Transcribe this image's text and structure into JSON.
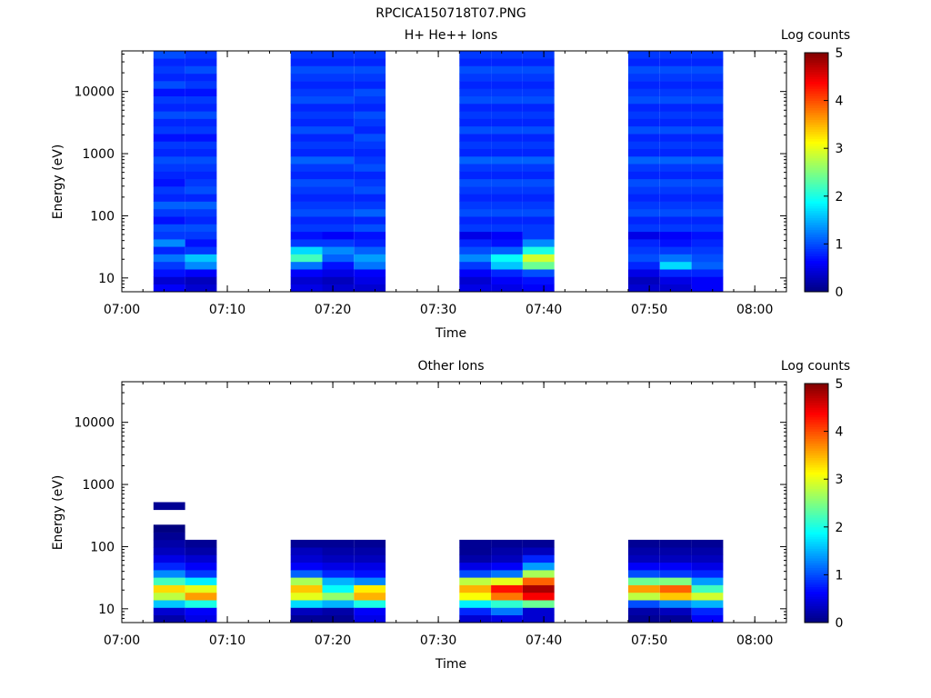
{
  "figure_title": "RPCICA150718T07.PNG",
  "colorbar_ticks": [
    "0",
    "1",
    "2",
    "3",
    "4",
    "5"
  ],
  "chart_data": [
    {
      "type": "heatmap",
      "title": "H+ He++ Ions",
      "xlabel": "Time",
      "ylabel": "Energy (eV)",
      "y_scale": "log",
      "ylim": [
        6,
        45000
      ],
      "xlim": [
        "07:00",
        "08:03"
      ],
      "x_ticks": [
        "07:00",
        "07:10",
        "07:20",
        "07:30",
        "07:40",
        "07:50",
        "08:00"
      ],
      "y_ticks": [
        "10",
        "100",
        "1000",
        "10000"
      ],
      "colorbar_label": "Log counts",
      "colorbar_range": [
        0,
        5
      ],
      "colormap": "jet",
      "columns": [
        {
          "start": "07:03",
          "end": "07:06",
          "values": [
            0.6,
            0.4,
            0.7,
            0.9,
            1.2,
            0.8,
            1.3,
            0.9,
            1.0,
            0.7,
            0.9,
            1.1,
            0.8,
            0.9,
            0.7,
            0.8,
            0.9,
            1.0,
            0.8,
            0.9,
            0.7,
            0.9,
            0.8,
            1.0,
            0.8,
            0.9,
            0.7,
            1.0,
            0.8,
            0.9,
            0.8,
            1.0
          ]
        },
        {
          "start": "07:06",
          "end": "07:09",
          "values": [
            0.4,
            0.3,
            0.6,
            1.3,
            1.6,
            0.9,
            0.7,
            0.9,
            1.0,
            0.8,
            0.9,
            1.1,
            0.8,
            1.0,
            0.9,
            0.8,
            0.9,
            1.0,
            0.8,
            0.9,
            0.7,
            0.9,
            0.8,
            1.0,
            0.8,
            0.9,
            0.7,
            0.9,
            0.8,
            1.0,
            0.8,
            0.9
          ]
        },
        {
          "start": "07:16",
          "end": "07:19",
          "values": [
            0.5,
            0.4,
            0.6,
            1.2,
            2.2,
            1.7,
            0.9,
            0.7,
            0.9,
            0.8,
            1.0,
            0.9,
            0.8,
            0.9,
            1.0,
            0.8,
            0.9,
            1.1,
            0.8,
            0.9,
            0.8,
            1.0,
            0.8,
            0.9,
            0.8,
            1.0,
            0.9,
            0.8,
            0.9,
            1.0,
            0.8,
            0.9
          ]
        },
        {
          "start": "07:19",
          "end": "07:22",
          "values": [
            0.4,
            0.3,
            0.5,
            0.7,
            1.1,
            1.3,
            0.9,
            0.6,
            0.9,
            0.8,
            1.0,
            0.9,
            0.8,
            0.9,
            1.0,
            0.8,
            0.9,
            1.1,
            0.8,
            0.9,
            0.8,
            1.0,
            0.8,
            0.9,
            0.8,
            1.0,
            0.9,
            0.8,
            0.9,
            1.0,
            0.8,
            0.9
          ]
        },
        {
          "start": "07:22",
          "end": "07:25",
          "values": [
            0.4,
            0.5,
            0.6,
            1.2,
            1.4,
            1.1,
            0.8,
            0.7,
            1.0,
            0.8,
            1.1,
            0.9,
            0.8,
            1.0,
            0.9,
            0.8,
            1.0,
            0.9,
            0.8,
            0.9,
            1.0,
            0.8,
            0.9,
            1.0,
            0.8,
            0.9,
            1.0,
            0.8,
            0.9,
            1.0,
            0.8,
            0.9
          ]
        },
        {
          "start": "07:32",
          "end": "07:35",
          "values": [
            0.5,
            0.4,
            0.6,
            0.9,
            1.3,
            1.0,
            0.8,
            0.5,
            0.9,
            0.8,
            1.0,
            0.9,
            0.8,
            0.9,
            1.0,
            0.8,
            0.9,
            1.1,
            0.8,
            0.9,
            0.8,
            1.0,
            0.8,
            0.9,
            0.8,
            1.0,
            0.9,
            0.8,
            0.9,
            1.0,
            0.8,
            0.9
          ]
        },
        {
          "start": "07:35",
          "end": "07:38",
          "values": [
            0.5,
            0.6,
            0.8,
            1.6,
            1.9,
            1.1,
            0.7,
            0.6,
            0.9,
            0.8,
            1.0,
            0.9,
            0.8,
            0.9,
            1.0,
            0.8,
            0.9,
            1.1,
            0.8,
            0.9,
            0.8,
            1.0,
            0.8,
            0.9,
            0.8,
            1.0,
            0.9,
            0.8,
            0.9,
            1.0,
            0.8,
            0.9
          ]
        },
        {
          "start": "07:38",
          "end": "07:41",
          "values": [
            0.6,
            0.7,
            1.0,
            2.4,
            2.9,
            2.0,
            1.3,
            0.9,
            0.9,
            0.8,
            1.0,
            0.9,
            0.8,
            0.9,
            1.0,
            0.8,
            0.9,
            1.1,
            0.8,
            0.9,
            0.8,
            1.0,
            0.8,
            0.9,
            0.8,
            1.0,
            0.9,
            0.8,
            0.9,
            1.0,
            0.8,
            0.9
          ]
        },
        {
          "start": "07:48",
          "end": "07:51",
          "values": [
            0.4,
            0.3,
            0.5,
            0.8,
            1.0,
            0.9,
            0.8,
            0.5,
            0.9,
            0.8,
            1.0,
            0.9,
            0.8,
            0.9,
            1.0,
            0.8,
            0.9,
            1.1,
            0.8,
            0.9,
            0.8,
            1.0,
            0.8,
            0.9,
            0.8,
            1.0,
            0.9,
            0.8,
            0.9,
            1.0,
            0.8,
            0.9
          ]
        },
        {
          "start": "07:51",
          "end": "07:54",
          "values": [
            0.4,
            0.5,
            0.8,
            1.7,
            1.2,
            0.9,
            0.7,
            0.6,
            0.9,
            0.8,
            1.0,
            0.9,
            0.8,
            0.9,
            1.0,
            0.8,
            0.9,
            1.1,
            0.8,
            0.9,
            0.8,
            1.0,
            0.8,
            0.9,
            0.8,
            1.0,
            0.9,
            0.8,
            0.9,
            1.0,
            0.8,
            0.9
          ]
        },
        {
          "start": "07:54",
          "end": "07:57",
          "values": [
            0.6,
            0.6,
            0.8,
            1.1,
            1.0,
            0.9,
            0.8,
            0.7,
            0.9,
            0.8,
            1.0,
            0.9,
            0.8,
            0.9,
            1.0,
            0.8,
            0.9,
            1.1,
            0.8,
            0.9,
            0.8,
            1.0,
            0.8,
            0.9,
            0.8,
            1.0,
            0.9,
            0.8,
            0.9,
            1.0,
            0.8,
            0.9
          ]
        }
      ]
    },
    {
      "type": "heatmap",
      "title": "Other Ions",
      "xlabel": "Time",
      "ylabel": "Energy (eV)",
      "y_scale": "log",
      "ylim": [
        6,
        45000
      ],
      "xlim": [
        "07:00",
        "08:03"
      ],
      "x_ticks": [
        "07:00",
        "07:10",
        "07:20",
        "07:30",
        "07:40",
        "07:50",
        "08:00"
      ],
      "y_ticks": [
        "10",
        "100",
        "1000",
        "10000"
      ],
      "colorbar_label": "Log counts",
      "colorbar_range": [
        0,
        5
      ],
      "colormap": "jet",
      "columns": [
        {
          "start": "07:03",
          "end": "07:06",
          "values": [
            0.2,
            0.4,
            1.6,
            2.8,
            3.3,
            2.2,
            1.3,
            0.8,
            0.5,
            0.3,
            0.2,
            0.1,
            0.0,
            null,
            null,
            0.1,
            null,
            null,
            null,
            null,
            null,
            null,
            null,
            null,
            null,
            null,
            null,
            null,
            null,
            null,
            null,
            null
          ]
        },
        {
          "start": "07:06",
          "end": "07:09",
          "values": [
            0.5,
            0.6,
            2.0,
            3.6,
            3.0,
            1.8,
            0.9,
            0.6,
            0.4,
            0.2,
            0.1,
            null,
            null,
            null,
            null,
            null,
            null,
            null,
            null,
            null,
            null,
            null,
            null,
            null,
            null,
            null,
            null,
            null,
            null,
            null,
            null,
            null
          ]
        },
        {
          "start": "07:16",
          "end": "07:19",
          "values": [
            0.1,
            0.3,
            1.7,
            3.0,
            3.4,
            2.7,
            1.1,
            0.6,
            0.4,
            0.3,
            0.1,
            null,
            null,
            null,
            null,
            null,
            null,
            null,
            null,
            null,
            null,
            null,
            null,
            null,
            null,
            null,
            null,
            null,
            null,
            null,
            null,
            null
          ]
        },
        {
          "start": "07:19",
          "end": "07:22",
          "values": [
            0.1,
            0.2,
            1.5,
            2.6,
            1.9,
            1.5,
            0.8,
            0.5,
            0.3,
            0.2,
            0.1,
            null,
            null,
            null,
            null,
            null,
            null,
            null,
            null,
            null,
            null,
            null,
            null,
            null,
            null,
            null,
            null,
            null,
            null,
            null,
            null,
            null
          ]
        },
        {
          "start": "07:22",
          "end": "07:25",
          "values": [
            0.5,
            0.6,
            2.0,
            3.5,
            3.2,
            1.3,
            0.7,
            0.5,
            0.3,
            0.2,
            0.1,
            null,
            null,
            null,
            null,
            null,
            null,
            null,
            null,
            null,
            null,
            null,
            null,
            null,
            null,
            null,
            null,
            null,
            null,
            null,
            null,
            null
          ]
        },
        {
          "start": "07:32",
          "end": "07:35",
          "values": [
            0.4,
            0.8,
            1.8,
            3.1,
            3.5,
            2.8,
            1.0,
            0.5,
            0.2,
            0.1,
            0.1,
            null,
            null,
            null,
            null,
            null,
            null,
            null,
            null,
            null,
            null,
            null,
            null,
            null,
            null,
            null,
            null,
            null,
            null,
            null,
            null,
            null
          ]
        },
        {
          "start": "07:35",
          "end": "07:38",
          "values": [
            0.5,
            1.2,
            2.1,
            3.8,
            4.3,
            3.0,
            1.2,
            0.6,
            0.3,
            0.2,
            0.1,
            null,
            null,
            null,
            null,
            null,
            null,
            null,
            null,
            null,
            null,
            null,
            null,
            null,
            null,
            null,
            null,
            null,
            null,
            null,
            null,
            null
          ]
        },
        {
          "start": "07:38",
          "end": "07:41",
          "values": [
            0.4,
            0.4,
            2.4,
            4.4,
            4.8,
            3.9,
            2.7,
            1.4,
            0.8,
            0.3,
            0.1,
            null,
            null,
            null,
            null,
            null,
            null,
            null,
            null,
            null,
            null,
            null,
            null,
            null,
            null,
            null,
            null,
            null,
            null,
            null,
            null,
            null
          ]
        },
        {
          "start": "07:48",
          "end": "07:51",
          "values": [
            0.1,
            0.2,
            1.0,
            2.8,
            3.6,
            2.4,
            1.0,
            0.6,
            0.3,
            0.2,
            0.1,
            null,
            null,
            null,
            null,
            null,
            null,
            null,
            null,
            null,
            null,
            null,
            null,
            null,
            null,
            null,
            null,
            null,
            null,
            null,
            null,
            null
          ]
        },
        {
          "start": "07:51",
          "end": "07:54",
          "values": [
            0.1,
            0.3,
            1.3,
            3.4,
            3.9,
            2.5,
            0.9,
            0.6,
            0.3,
            0.2,
            0.1,
            null,
            null,
            null,
            null,
            null,
            null,
            null,
            null,
            null,
            null,
            null,
            null,
            null,
            null,
            null,
            null,
            null,
            null,
            null,
            null,
            null
          ]
        },
        {
          "start": "07:54",
          "end": "07:57",
          "values": [
            0.6,
            0.8,
            1.5,
            2.9,
            2.2,
            1.4,
            0.8,
            0.5,
            0.3,
            0.2,
            0.1,
            null,
            null,
            null,
            null,
            null,
            null,
            null,
            null,
            null,
            null,
            null,
            null,
            null,
            null,
            null,
            null,
            null,
            null,
            null,
            null,
            null
          ]
        }
      ]
    }
  ]
}
